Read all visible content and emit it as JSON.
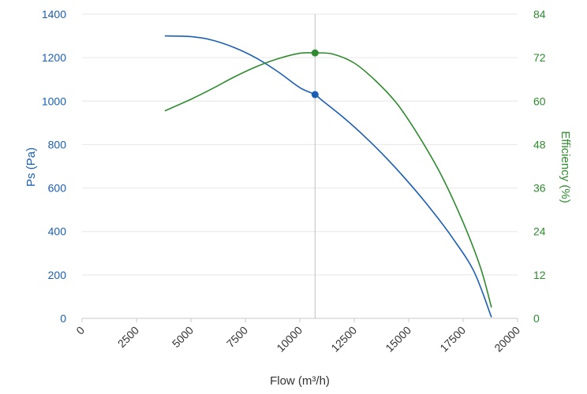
{
  "chart_data": {
    "type": "line",
    "x_axis": {
      "label": "Flow (m³/h)",
      "min": 0,
      "max": 20000,
      "ticks": [
        "0",
        "2500",
        "5000",
        "7500",
        "10000",
        "12500",
        "15000",
        "17500",
        "20000"
      ],
      "tick_values": [
        0,
        2500,
        5000,
        7500,
        10000,
        12500,
        15000,
        17500,
        20000
      ],
      "tick_rotation_deg": -45
    },
    "y_left": {
      "label": "Ps (Pa)",
      "min": 0,
      "max": 1400,
      "ticks": [
        "0",
        "200",
        "400",
        "600",
        "800",
        "1000",
        "1200",
        "1400"
      ],
      "tick_values": [
        0,
        200,
        400,
        600,
        800,
        1000,
        1200,
        1400
      ],
      "color": "#1a5fb4"
    },
    "y_right": {
      "label": "Efficiency (%)",
      "min": 0,
      "max": 84,
      "ticks": [
        "0",
        "12",
        "24",
        "36",
        "48",
        "60",
        "72",
        "84"
      ],
      "tick_values": [
        0,
        12,
        24,
        36,
        48,
        60,
        72,
        84
      ],
      "color": "#2e8b2e"
    },
    "grid": "horizontal",
    "series": [
      {
        "axis": "left",
        "color": "#1a5fb4",
        "points": [
          [
            3800,
            1300
          ],
          [
            5000,
            1297
          ],
          [
            6000,
            1280
          ],
          [
            7000,
            1246
          ],
          [
            8000,
            1198
          ],
          [
            9000,
            1135
          ],
          [
            10000,
            1062
          ],
          [
            10700,
            1030
          ],
          [
            11000,
            1005
          ],
          [
            12000,
            925
          ],
          [
            13000,
            835
          ],
          [
            14000,
            735
          ],
          [
            15000,
            625
          ],
          [
            16000,
            505
          ],
          [
            17000,
            372
          ],
          [
            18000,
            215
          ],
          [
            18800,
            5
          ]
        ]
      },
      {
        "axis": "right",
        "color": "#2e8b2e",
        "points": [
          [
            3800,
            57.3
          ],
          [
            5000,
            60.5
          ],
          [
            6000,
            63.5
          ],
          [
            7000,
            66.7
          ],
          [
            8000,
            69.5
          ],
          [
            9000,
            71.7
          ],
          [
            10000,
            73.2
          ],
          [
            10700,
            73.3
          ],
          [
            11500,
            73.0
          ],
          [
            12500,
            70.5
          ],
          [
            13500,
            65.5
          ],
          [
            14500,
            59.0
          ],
          [
            15500,
            50.0
          ],
          [
            16500,
            39.5
          ],
          [
            17500,
            26.5
          ],
          [
            18300,
            14.0
          ],
          [
            18800,
            3.0
          ]
        ]
      }
    ],
    "operating_point": {
      "x": 10700,
      "ps": 1030,
      "efficiency": 73.3
    }
  }
}
